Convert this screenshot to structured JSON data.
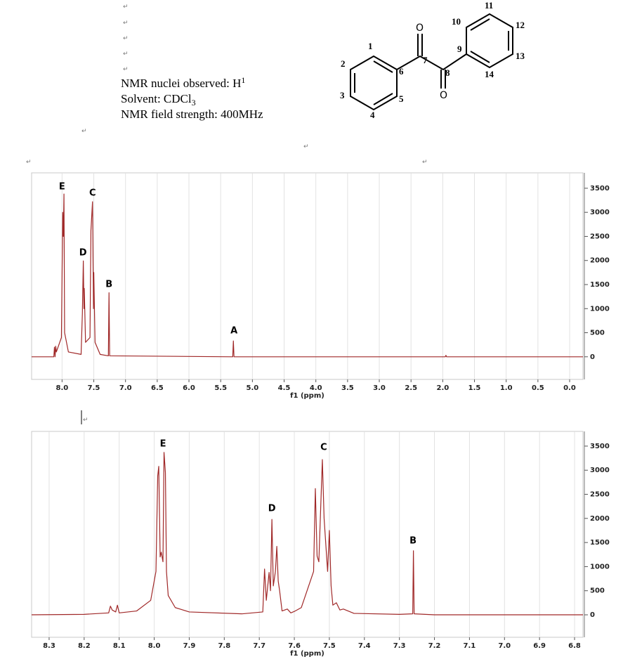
{
  "document": {
    "paragraph_mark": "↵",
    "nuclei": {
      "text": "NMR nuclei observed: H",
      "sup": "1"
    },
    "solvent": {
      "text": "Solvent: CDCl",
      "sub": "3"
    },
    "field": "NMR field strength: 400MHz"
  },
  "molecule": {
    "atom_labels": [
      "1",
      "2",
      "3",
      "4",
      "5",
      "6",
      "7",
      "8",
      "9",
      "10",
      "11",
      "12",
      "13",
      "14"
    ],
    "oxygen": "O"
  },
  "chart_data": [
    {
      "type": "line",
      "xlabel": "f1 (ppm)",
      "color": "#a02828",
      "grid": true,
      "xlim": [
        8.48,
        -0.21
      ],
      "ylim": [
        -470,
        3820
      ],
      "xticks": [
        {
          "value": 8,
          "label": "8.0"
        },
        7.5,
        {
          "value": 7,
          "label": "7.0"
        },
        6.5,
        {
          "value": 6,
          "label": "6.0"
        },
        5.5,
        {
          "value": 5,
          "label": "5.0"
        },
        4.5,
        {
          "value": 4,
          "label": "4.0"
        },
        3.5,
        {
          "value": 3,
          "label": "3.0"
        },
        2.5,
        {
          "value": 2,
          "label": "2.0"
        },
        1.5,
        {
          "value": 1,
          "label": "1.0"
        },
        0.5,
        {
          "value": 0,
          "label": "0.0"
        }
      ],
      "yticks": [
        0,
        500,
        1000,
        1500,
        2000,
        2500,
        3000,
        3500
      ],
      "x": [
        8.48,
        8.13,
        8.12,
        8.11,
        8.1,
        8.09,
        8.01,
        7.99,
        7.98,
        7.97,
        7.96,
        7.9,
        7.7,
        7.68,
        7.665,
        7.655,
        7.65,
        7.63,
        7.56,
        7.545,
        7.52,
        7.505,
        7.5,
        7.48,
        7.4,
        7.27,
        7.26,
        7.25,
        5.31,
        5.3,
        5.29,
        1.96,
        1.95,
        1.94,
        -0.21
      ],
      "values": [
        0,
        0,
        200,
        0,
        220,
        100,
        400,
        3000,
        2500,
        3380,
        500,
        100,
        50,
        900,
        1990,
        1000,
        1420,
        300,
        400,
        2620,
        3220,
        1000,
        1750,
        300,
        50,
        20,
        1330,
        20,
        0,
        330,
        0,
        0,
        30,
        0,
        0
      ],
      "annotations": [
        {
          "text": "E",
          "x": 8.0,
          "y": 3530
        },
        {
          "text": "C",
          "x": 7.52,
          "y": 3400
        },
        {
          "text": "D",
          "x": 7.67,
          "y": 2160
        },
        {
          "text": "B",
          "x": 7.26,
          "y": 1500
        },
        {
          "text": "A",
          "x": 5.29,
          "y": 540
        }
      ]
    },
    {
      "type": "line",
      "xlabel": "f1 (ppm)",
      "color": "#a02828",
      "grid": true,
      "xlim": [
        8.35,
        6.776
      ],
      "ylim": [
        -466,
        3805
      ],
      "xticks": [
        8.3,
        8.2,
        8.1,
        {
          "value": 8,
          "label": "8.0"
        },
        7.9,
        7.8,
        7.7,
        7.6,
        7.5,
        7.4,
        7.3,
        7.2,
        7.1,
        {
          "value": 7,
          "label": "7.0"
        },
        6.9,
        6.8
      ],
      "yticks": [
        0,
        500,
        1000,
        1500,
        2000,
        2500,
        3000,
        3500
      ],
      "x": [
        8.35,
        8.2,
        8.13,
        8.125,
        8.12,
        8.11,
        8.105,
        8.1,
        8.05,
        8.01,
        7.995,
        7.99,
        7.987,
        7.983,
        7.98,
        7.975,
        7.972,
        7.968,
        7.965,
        7.96,
        7.94,
        7.9,
        7.75,
        7.69,
        7.685,
        7.68,
        7.672,
        7.668,
        7.664,
        7.66,
        7.654,
        7.65,
        7.646,
        7.642,
        7.635,
        7.62,
        7.61,
        7.6,
        7.58,
        7.545,
        7.54,
        7.535,
        7.53,
        7.52,
        7.515,
        7.505,
        7.5,
        7.495,
        7.49,
        7.48,
        7.47,
        7.46,
        7.43,
        7.3,
        7.262,
        7.26,
        7.258,
        7.2,
        6.776
      ],
      "values": [
        0,
        10,
        40,
        180,
        100,
        60,
        200,
        40,
        80,
        300,
        900,
        2880,
        3080,
        1200,
        1300,
        1100,
        3370,
        2950,
        900,
        400,
        150,
        60,
        20,
        60,
        950,
        300,
        880,
        500,
        1980,
        600,
        900,
        1420,
        700,
        500,
        80,
        120,
        40,
        70,
        150,
        900,
        2620,
        1220,
        1100,
        3220,
        2000,
        900,
        1750,
        600,
        200,
        250,
        100,
        120,
        30,
        10,
        20,
        1330,
        20,
        0,
        0
      ],
      "annotations": [
        {
          "text": "E",
          "x": 7.975,
          "y": 3540
        },
        {
          "text": "C",
          "x": 7.516,
          "y": 3470
        },
        {
          "text": "D",
          "x": 7.664,
          "y": 2200
        },
        {
          "text": "B",
          "x": 7.261,
          "y": 1530
        }
      ]
    }
  ]
}
